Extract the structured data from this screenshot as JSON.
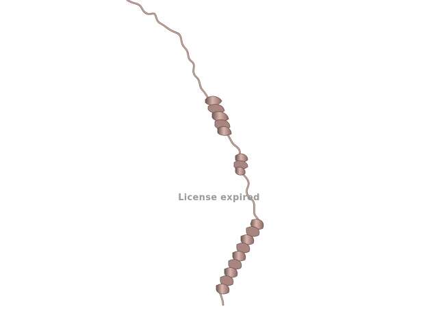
{
  "viewer": {
    "watermark_text": "License expired",
    "structure_color": "#c9a49c",
    "structure_shadow": "#6e5550",
    "background": "#ffffff",
    "watermark_color": "#9a9a9a"
  }
}
